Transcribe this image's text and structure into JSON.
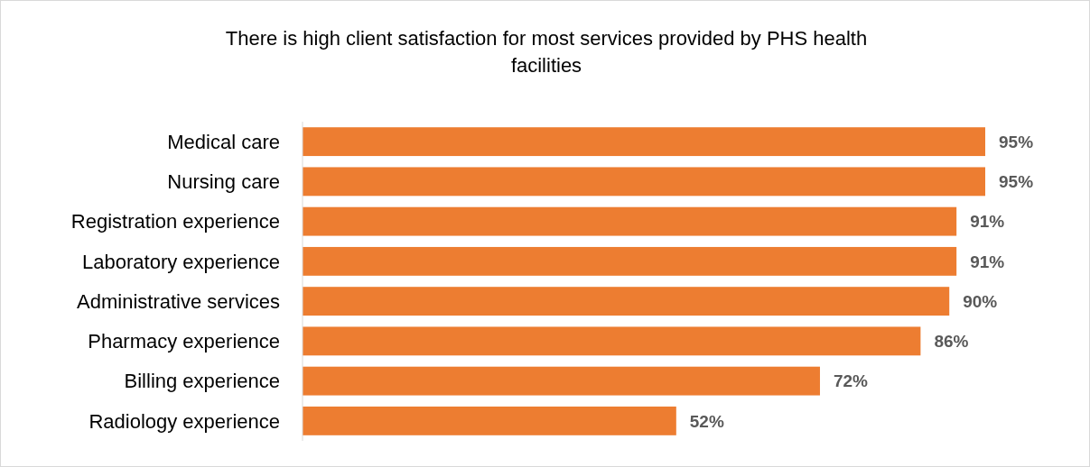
{
  "chart_data": {
    "type": "bar",
    "orientation": "horizontal",
    "title": "There is high client satisfaction for most services provided by PHS health facilities",
    "categories": [
      "Medical care",
      "Nursing care",
      "Registration experience",
      "Laboratory experience",
      "Administrative services",
      "Pharmacy experience",
      "Billing experience",
      "Radiology experience"
    ],
    "values": [
      95,
      95,
      91,
      91,
      90,
      86,
      72,
      52
    ],
    "value_labels": [
      "95%",
      "95%",
      "91%",
      "91%",
      "90%",
      "86%",
      "72%",
      "52%"
    ],
    "color": "#ed7d31"
  }
}
